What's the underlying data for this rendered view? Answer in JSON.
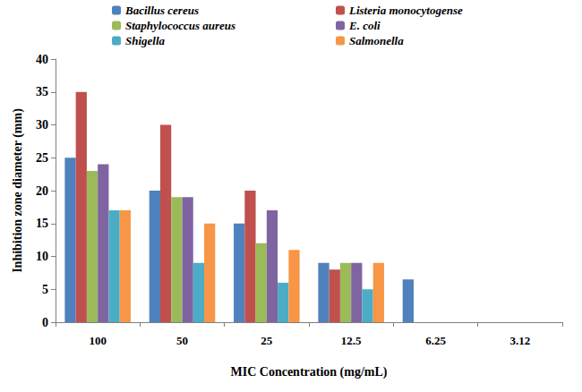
{
  "chart_data": {
    "type": "bar",
    "x_label": "MIC Concentration (mg/mL)",
    "y_label": "Inhibition zone diameter (mm)",
    "categories": [
      "100",
      "50",
      "25",
      "12.5",
      "6.25",
      "3.12"
    ],
    "series": [
      {
        "name": "Bacillus cereus",
        "color": "#4f81bd",
        "values": [
          25,
          20,
          15,
          9,
          6.5,
          null
        ]
      },
      {
        "name": "Listeria monocytogense",
        "color": "#c0504d",
        "values": [
          35,
          30,
          20,
          8,
          null,
          null
        ]
      },
      {
        "name": "Staphylococcus aureus",
        "color": "#9bbb59",
        "values": [
          23,
          19,
          12,
          9,
          null,
          null
        ]
      },
      {
        "name": "E. coli",
        "color": "#8064a2",
        "values": [
          24,
          19,
          17,
          9,
          null,
          null
        ]
      },
      {
        "name": "Shigella",
        "color": "#4bacc6",
        "values": [
          17,
          9,
          6,
          5,
          null,
          null
        ]
      },
      {
        "name": "Salmonella",
        "color": "#f79646",
        "values": [
          17,
          15,
          11,
          9,
          null,
          null
        ]
      }
    ],
    "ylim": [
      0,
      40
    ],
    "yticks": [
      0,
      5,
      10,
      15,
      20,
      25,
      30,
      35,
      40
    ],
    "grid": false,
    "legend": "top"
  }
}
